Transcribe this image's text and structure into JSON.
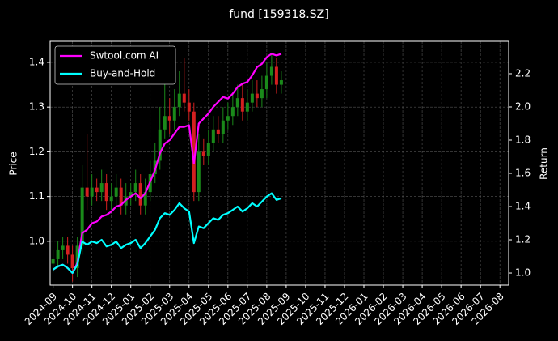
{
  "chart_data": {
    "type": "candlestick",
    "title": "fund [159318.SZ]",
    "ylabel": "Price",
    "y2label": "Return",
    "x": [
      0,
      0.25,
      0.5,
      0.75,
      1,
      1.25,
      1.5,
      1.75,
      2,
      2.25,
      2.5,
      2.75,
      3,
      3.25,
      3.5,
      3.75,
      4,
      4.25,
      4.5,
      4.75,
      5,
      5.25,
      5.5,
      5.75,
      6,
      6.25,
      6.5,
      6.75,
      7,
      7.25,
      7.5,
      7.75,
      8,
      8.25,
      8.5,
      8.75,
      9,
      9.25,
      9.5,
      9.75,
      10,
      10.25,
      10.5,
      10.75,
      11,
      11.25,
      11.5,
      11.75
    ],
    "open": [
      0.95,
      0.96,
      0.98,
      0.99,
      0.97,
      0.94,
      0.99,
      1.12,
      1.1,
      1.12,
      1.11,
      1.13,
      1.09,
      1.1,
      1.12,
      1.08,
      1.1,
      1.11,
      1.13,
      1.08,
      1.11,
      1.15,
      1.18,
      1.25,
      1.28,
      1.27,
      1.3,
      1.33,
      1.31,
      1.29,
      1.11,
      1.2,
      1.19,
      1.22,
      1.25,
      1.24,
      1.27,
      1.28,
      1.3,
      1.32,
      1.29,
      1.31,
      1.33,
      1.32,
      1.34,
      1.37,
      1.39,
      1.35
    ],
    "high": [
      0.98,
      1.0,
      1.01,
      1.01,
      0.99,
      1.01,
      1.17,
      1.24,
      1.15,
      1.14,
      1.16,
      1.15,
      1.13,
      1.15,
      1.14,
      1.13,
      1.13,
      1.16,
      1.15,
      1.14,
      1.18,
      1.22,
      1.3,
      1.36,
      1.32,
      1.34,
      1.38,
      1.41,
      1.34,
      1.31,
      1.24,
      1.23,
      1.25,
      1.28,
      1.28,
      1.3,
      1.31,
      1.33,
      1.35,
      1.35,
      1.34,
      1.36,
      1.36,
      1.37,
      1.4,
      1.42,
      1.41,
      1.38
    ],
    "low": [
      0.93,
      0.94,
      0.96,
      0.95,
      0.91,
      0.92,
      0.97,
      1.07,
      1.08,
      1.09,
      1.09,
      1.07,
      1.07,
      1.08,
      1.06,
      1.06,
      1.08,
      1.09,
      1.06,
      1.06,
      1.09,
      1.13,
      1.16,
      1.23,
      1.24,
      1.25,
      1.28,
      1.29,
      1.27,
      1.09,
      1.09,
      1.17,
      1.17,
      1.2,
      1.22,
      1.22,
      1.25,
      1.26,
      1.28,
      1.27,
      1.27,
      1.29,
      1.3,
      1.3,
      1.32,
      1.35,
      1.33,
      1.33
    ],
    "close": [
      0.96,
      0.98,
      0.99,
      0.97,
      0.94,
      0.99,
      1.12,
      1.1,
      1.12,
      1.11,
      1.13,
      1.09,
      1.1,
      1.12,
      1.08,
      1.1,
      1.11,
      1.13,
      1.08,
      1.11,
      1.15,
      1.18,
      1.25,
      1.28,
      1.27,
      1.3,
      1.33,
      1.31,
      1.29,
      1.11,
      1.2,
      1.19,
      1.22,
      1.25,
      1.24,
      1.27,
      1.28,
      1.3,
      1.32,
      1.29,
      1.31,
      1.33,
      1.32,
      1.34,
      1.37,
      1.39,
      1.35,
      1.36
    ],
    "up_color": "#1a8a1a",
    "down_color": "#d42020",
    "series": [
      {
        "name": "Swtool.com AI",
        "color": "#ff00ff",
        "axis": "y2",
        "values": [
          1.02,
          1.04,
          1.05,
          1.03,
          1.0,
          1.06,
          1.24,
          1.26,
          1.3,
          1.31,
          1.34,
          1.35,
          1.37,
          1.4,
          1.41,
          1.44,
          1.46,
          1.48,
          1.45,
          1.48,
          1.55,
          1.62,
          1.72,
          1.78,
          1.8,
          1.84,
          1.88,
          1.88,
          1.89,
          1.66,
          1.9,
          1.93,
          1.96,
          2.0,
          2.03,
          2.06,
          2.05,
          2.08,
          2.12,
          2.14,
          2.15,
          2.19,
          2.24,
          2.26,
          2.3,
          2.32,
          2.31,
          2.32
        ]
      },
      {
        "name": "Buy-and-Hold",
        "color": "#00ffff",
        "axis": "y2",
        "values": [
          1.02,
          1.04,
          1.05,
          1.03,
          1.0,
          1.05,
          1.19,
          1.17,
          1.19,
          1.18,
          1.2,
          1.16,
          1.17,
          1.19,
          1.15,
          1.17,
          1.18,
          1.2,
          1.15,
          1.18,
          1.22,
          1.26,
          1.33,
          1.36,
          1.35,
          1.38,
          1.42,
          1.39,
          1.37,
          1.18,
          1.28,
          1.27,
          1.3,
          1.33,
          1.32,
          1.35,
          1.36,
          1.38,
          1.4,
          1.37,
          1.39,
          1.42,
          1.4,
          1.43,
          1.46,
          1.48,
          1.44,
          1.45
        ]
      }
    ],
    "xlim": [
      -0.15,
      23.45
    ],
    "xticks": [
      {
        "value": 0,
        "label": "2024-09"
      },
      {
        "value": 1,
        "label": "2024-10"
      },
      {
        "value": 2,
        "label": "2024-11"
      },
      {
        "value": 3,
        "label": "2024-12"
      },
      {
        "value": 4,
        "label": "2025-01"
      },
      {
        "value": 5,
        "label": "2025-02"
      },
      {
        "value": 6,
        "label": "2025-03"
      },
      {
        "value": 7,
        "label": "2025-04"
      },
      {
        "value": 8,
        "label": "2025-05"
      },
      {
        "value": 9,
        "label": "2025-06"
      },
      {
        "value": 10,
        "label": "2025-07"
      },
      {
        "value": 11,
        "label": "2025-08"
      },
      {
        "value": 12,
        "label": "2025-09"
      },
      {
        "value": 13,
        "label": "2025-10"
      },
      {
        "value": 14,
        "label": "2025-11"
      },
      {
        "value": 15,
        "label": "2025-12"
      },
      {
        "value": 16,
        "label": "2026-01"
      },
      {
        "value": 17,
        "label": "2026-02"
      },
      {
        "value": 18,
        "label": "2026-03"
      },
      {
        "value": 19,
        "label": "2026-04"
      },
      {
        "value": 20,
        "label": "2026-05"
      },
      {
        "value": 21,
        "label": "2026-06"
      },
      {
        "value": 22,
        "label": "2026-07"
      },
      {
        "value": 23,
        "label": "2026-08"
      }
    ],
    "ylim": [
      0.902,
      1.447
    ],
    "yticks": [
      {
        "value": 1,
        "label": "1.0"
      },
      1.1,
      1.2,
      1.3,
      1.4
    ],
    "y2lim": [
      0.927,
      2.395
    ],
    "y2ticks": [
      {
        "value": 1,
        "label": "1.0"
      },
      1.2,
      1.4,
      1.6,
      1.8,
      {
        "value": 2,
        "label": "2.0"
      },
      2.2
    ],
    "grid": true,
    "legend": "upper left"
  }
}
